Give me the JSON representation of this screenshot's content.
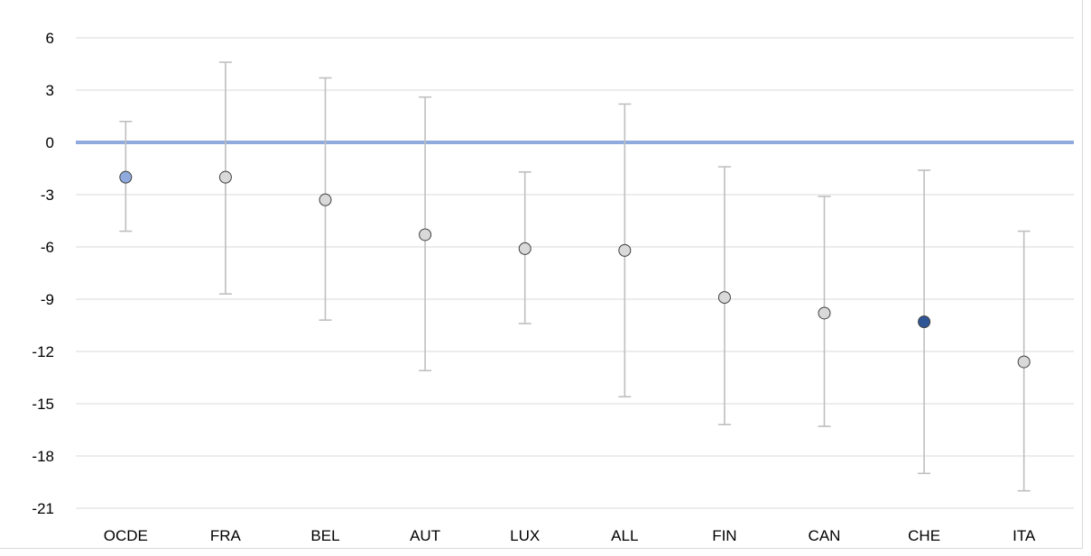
{
  "chart_data": {
    "type": "scatter",
    "title": "",
    "xlabel": "",
    "ylabel": "",
    "categories": [
      "OCDE",
      "FRA",
      "BEL",
      "AUT",
      "LUX",
      "ALL",
      "FIN",
      "CAN",
      "CHE",
      "ITA"
    ],
    "values": [
      -2.0,
      -2.0,
      -3.3,
      -5.3,
      -6.1,
      -6.2,
      -8.9,
      -9.8,
      -10.3,
      -12.6
    ],
    "upper": [
      1.2,
      4.6,
      3.7,
      2.6,
      -1.7,
      2.2,
      -1.4,
      -3.1,
      -1.6,
      -5.1
    ],
    "lower": [
      -5.1,
      -8.7,
      -10.2,
      -13.1,
      -10.4,
      -14.6,
      -16.2,
      -16.3,
      -19.0,
      -20.0
    ],
    "marker_colors": [
      "#8faadc",
      "#d9d9d9",
      "#d9d9d9",
      "#d9d9d9",
      "#d9d9d9",
      "#d9d9d9",
      "#d9d9d9",
      "#d9d9d9",
      "#2f5597",
      "#d9d9d9"
    ],
    "yticks": [
      6,
      3,
      0,
      -3,
      -6,
      -9,
      -12,
      -15,
      -18,
      -21
    ],
    "ylim": [
      -21,
      6
    ],
    "zero_line_color": "#8faadc",
    "errorbar_color": "#bfbfbf",
    "grid": true,
    "legend": "none"
  }
}
